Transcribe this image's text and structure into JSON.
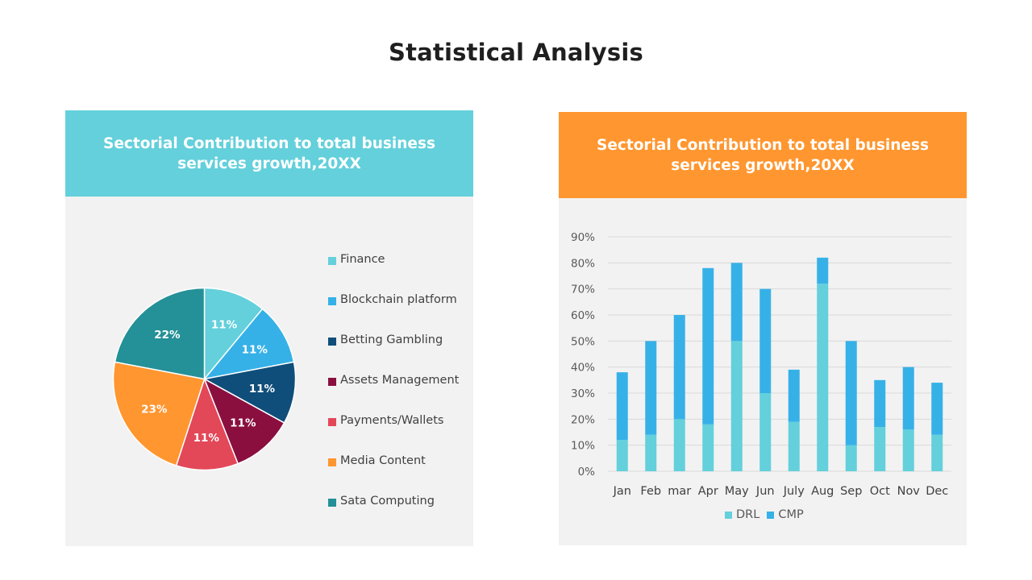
{
  "page": {
    "title": "Statistical Analysis"
  },
  "left_panel": {
    "header": "Sectorial Contribution to total business services growth,20XX"
  },
  "right_panel": {
    "header": "Sectorial Contribution to total business services growth,20XX"
  },
  "chart_data": [
    {
      "type": "pie",
      "slices": [
        {
          "label": "Finance",
          "value": 11,
          "display": "11%",
          "color": "#63d0db"
        },
        {
          "label": "Blockchain platform",
          "value": 11,
          "display": "11%",
          "color": "#36b1e7"
        },
        {
          "label": "Betting Gambling",
          "value": 11,
          "display": "11%",
          "color": "#0f4e7a"
        },
        {
          "label": "Assets Management",
          "value": 11,
          "display": "11%",
          "color": "#8a0f3f"
        },
        {
          "label": "Payments/Wallets",
          "value": 11,
          "display": "11%",
          "color": "#e34858"
        },
        {
          "label": "Media Content",
          "value": 23,
          "display": "23%",
          "color": "#ff962f"
        },
        {
          "label": "Sata Computing",
          "value": 22,
          "display": "22%",
          "color": "#249097"
        }
      ],
      "legend_position": "right"
    },
    {
      "type": "bar",
      "stacked": true,
      "categories": [
        "Jan",
        "Feb",
        "mar",
        "Apr",
        "May",
        "Jun",
        "July",
        "Aug",
        "Sep",
        "Oct",
        "Nov",
        "Dec"
      ],
      "series": [
        {
          "name": "DRL",
          "color": "#63d0db",
          "values": [
            12,
            14,
            20,
            18,
            50,
            30,
            19,
            72,
            10,
            17,
            16,
            14
          ]
        },
        {
          "name": "CMP",
          "color": "#36b1e7",
          "values": [
            26,
            36,
            40,
            60,
            30,
            40,
            20,
            10,
            40,
            18,
            24,
            20
          ]
        }
      ],
      "ylim": [
        0,
        90
      ],
      "yticks": [
        "0%",
        "10%",
        "20%",
        "30%",
        "40%",
        "50%",
        "60%",
        "70%",
        "80%",
        "90%"
      ],
      "grid": true,
      "legend_position": "bottom"
    }
  ]
}
